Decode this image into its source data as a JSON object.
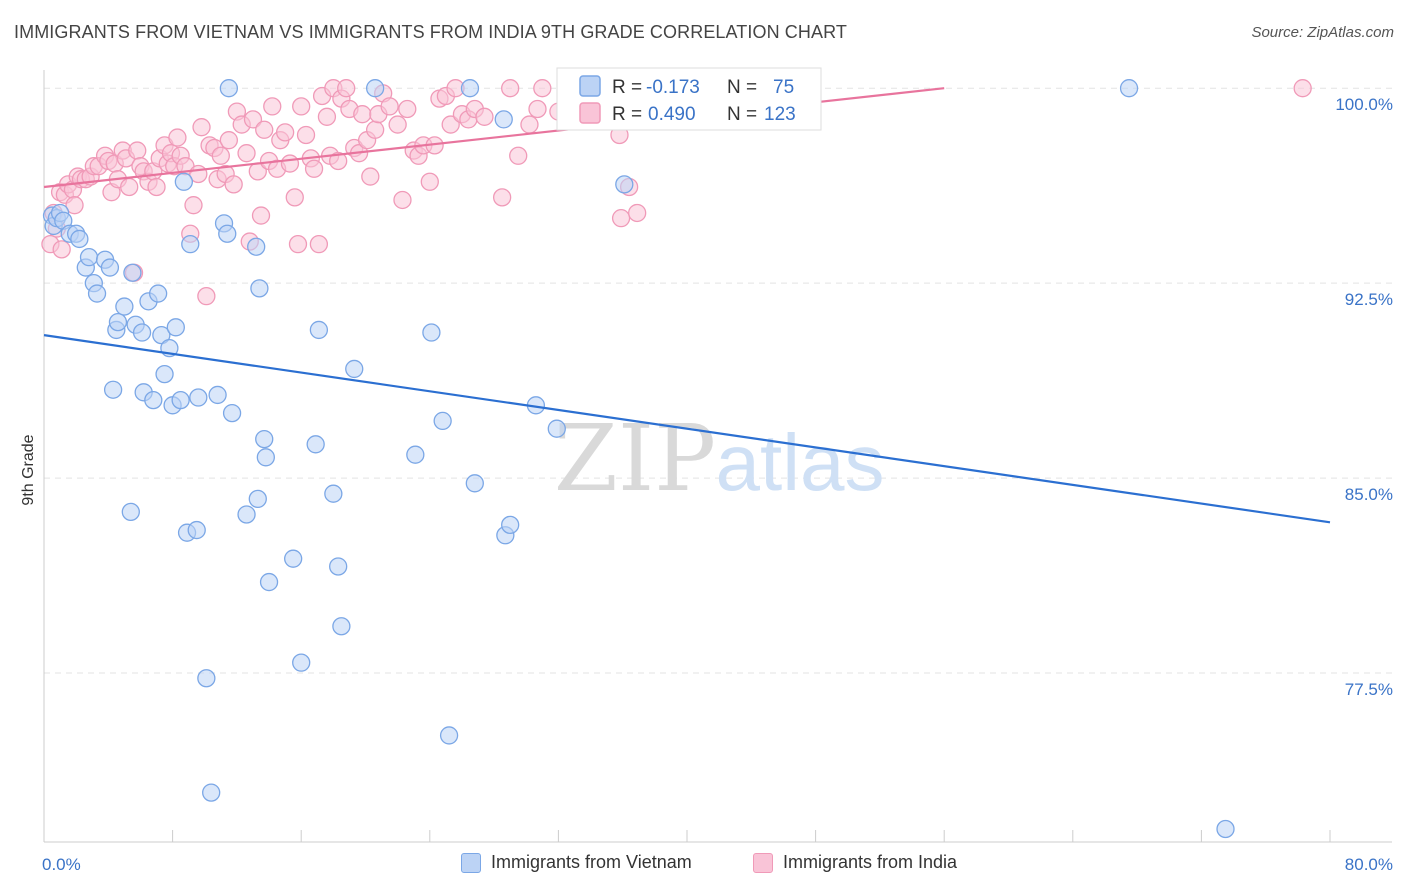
{
  "chart_data": {
    "type": "scatter",
    "title": "IMMIGRANTS FROM VIETNAM VS IMMIGRANTS FROM INDIA 9TH GRADE CORRELATION CHART",
    "source": "Source: ZipAtlas.com",
    "ylabel": "9th Grade",
    "xlabel": "",
    "x_range": [
      0,
      80
    ],
    "y_range": [
      71,
      100.7
    ],
    "x_tick_labels": [
      "0.0%",
      "80.0%"
    ],
    "y_ticks": [
      100.0,
      92.5,
      85.0,
      77.5
    ],
    "y_tick_labels": [
      "100.0%",
      "92.5%",
      "85.0%",
      "77.5%"
    ],
    "watermark": {
      "zip": "ZIP",
      "atlas": "atlas"
    },
    "legend": {
      "r_label": "R =",
      "n_label": "N =",
      "entries": [
        {
          "r": "-0.173",
          "n": "75"
        },
        {
          "r": "0.490",
          "n": "123"
        }
      ]
    },
    "series": [
      {
        "name": "Immigrants from Vietnam",
        "color": "#7ba7e6",
        "fill": "#bcd3f5",
        "line_color": "#2b6fd1",
        "trend": [
          [
            0,
            90.5
          ],
          [
            80,
            83.3
          ]
        ],
        "points": [
          [
            0.5,
            95.1
          ],
          [
            0.6,
            94.7
          ],
          [
            0.8,
            95.0
          ],
          [
            1.0,
            95.2
          ],
          [
            1.2,
            94.9
          ],
          [
            1.6,
            94.4
          ],
          [
            2.0,
            94.4
          ],
          [
            2.2,
            94.2
          ],
          [
            2.6,
            93.1
          ],
          [
            2.8,
            93.5
          ],
          [
            3.1,
            92.5
          ],
          [
            3.3,
            92.1
          ],
          [
            3.8,
            93.4
          ],
          [
            4.1,
            93.1
          ],
          [
            4.3,
            88.4
          ],
          [
            4.5,
            90.7
          ],
          [
            4.6,
            91.0
          ],
          [
            5.0,
            91.6
          ],
          [
            5.4,
            83.7
          ],
          [
            5.5,
            92.9
          ],
          [
            5.7,
            90.9
          ],
          [
            6.2,
            88.3
          ],
          [
            6.1,
            90.6
          ],
          [
            6.5,
            91.8
          ],
          [
            6.8,
            88.0
          ],
          [
            7.1,
            92.1
          ],
          [
            7.3,
            90.5
          ],
          [
            7.5,
            89.0
          ],
          [
            7.8,
            90.0
          ],
          [
            8.0,
            87.8
          ],
          [
            8.2,
            90.8
          ],
          [
            8.5,
            88.0
          ],
          [
            8.7,
            96.4
          ],
          [
            8.9,
            82.9
          ],
          [
            9.1,
            94.0
          ],
          [
            9.5,
            83.0
          ],
          [
            9.6,
            88.1
          ],
          [
            10.1,
            77.3
          ],
          [
            10.4,
            72.9
          ],
          [
            10.8,
            88.2
          ],
          [
            11.2,
            94.8
          ],
          [
            11.4,
            94.4
          ],
          [
            11.5,
            100.0
          ],
          [
            11.7,
            87.5
          ],
          [
            12.6,
            83.6
          ],
          [
            13.3,
            84.2
          ],
          [
            13.4,
            92.3
          ],
          [
            13.2,
            93.9
          ],
          [
            13.7,
            86.5
          ],
          [
            13.8,
            85.8
          ],
          [
            14.0,
            81.0
          ],
          [
            15.5,
            81.9
          ],
          [
            16.0,
            77.9
          ],
          [
            16.9,
            86.3
          ],
          [
            17.1,
            90.7
          ],
          [
            18.0,
            84.4
          ],
          [
            18.3,
            81.6
          ],
          [
            18.5,
            79.3
          ],
          [
            19.3,
            89.2
          ],
          [
            20.6,
            100.0
          ],
          [
            23.1,
            85.9
          ],
          [
            24.1,
            90.6
          ],
          [
            24.8,
            87.2
          ],
          [
            25.2,
            75.1
          ],
          [
            26.5,
            100.0
          ],
          [
            26.8,
            84.8
          ],
          [
            28.6,
            98.8
          ],
          [
            28.7,
            82.8
          ],
          [
            29.0,
            83.2
          ],
          [
            30.6,
            87.8
          ],
          [
            31.9,
            86.9
          ],
          [
            35.5,
            100.0
          ],
          [
            36.1,
            96.3
          ],
          [
            67.5,
            100.0
          ],
          [
            73.5,
            71.5
          ]
        ]
      },
      {
        "name": "Immigrants from India",
        "color": "#f09ab8",
        "fill": "#f9c4d7",
        "line_color": "#e8749d",
        "trend": [
          [
            0,
            96.2
          ],
          [
            56,
            100.0
          ]
        ],
        "points": [
          [
            0.4,
            94.0
          ],
          [
            0.6,
            95.2
          ],
          [
            0.8,
            94.6
          ],
          [
            1.0,
            96.0
          ],
          [
            1.1,
            93.8
          ],
          [
            1.3,
            95.9
          ],
          [
            1.5,
            96.3
          ],
          [
            1.8,
            96.1
          ],
          [
            1.9,
            95.5
          ],
          [
            2.1,
            96.6
          ],
          [
            2.3,
            96.5
          ],
          [
            2.6,
            96.5
          ],
          [
            2.9,
            96.6
          ],
          [
            3.1,
            97.0
          ],
          [
            3.4,
            97.0
          ],
          [
            3.8,
            97.4
          ],
          [
            4.0,
            97.2
          ],
          [
            4.2,
            96.0
          ],
          [
            4.4,
            97.1
          ],
          [
            4.6,
            96.5
          ],
          [
            4.9,
            97.6
          ],
          [
            5.1,
            97.3
          ],
          [
            5.3,
            96.2
          ],
          [
            5.6,
            92.9
          ],
          [
            5.8,
            97.6
          ],
          [
            6.0,
            97.0
          ],
          [
            6.2,
            96.8
          ],
          [
            6.5,
            96.4
          ],
          [
            6.8,
            96.8
          ],
          [
            7.0,
            96.2
          ],
          [
            7.2,
            97.3
          ],
          [
            7.5,
            97.8
          ],
          [
            7.7,
            97.1
          ],
          [
            7.9,
            97.5
          ],
          [
            8.1,
            97.0
          ],
          [
            8.3,
            98.1
          ],
          [
            8.5,
            97.4
          ],
          [
            8.8,
            97.0
          ],
          [
            9.1,
            94.4
          ],
          [
            9.3,
            95.5
          ],
          [
            9.6,
            96.7
          ],
          [
            9.8,
            98.5
          ],
          [
            10.1,
            92.0
          ],
          [
            10.3,
            97.8
          ],
          [
            10.6,
            97.7
          ],
          [
            10.8,
            96.5
          ],
          [
            11.0,
            97.4
          ],
          [
            11.3,
            96.7
          ],
          [
            11.5,
            98.0
          ],
          [
            11.8,
            96.3
          ],
          [
            12.0,
            99.1
          ],
          [
            12.3,
            98.6
          ],
          [
            12.6,
            97.5
          ],
          [
            12.8,
            94.1
          ],
          [
            13.0,
            98.8
          ],
          [
            13.3,
            96.8
          ],
          [
            13.5,
            95.1
          ],
          [
            13.7,
            98.4
          ],
          [
            14.0,
            97.2
          ],
          [
            14.2,
            99.3
          ],
          [
            14.5,
            96.9
          ],
          [
            14.7,
            98.0
          ],
          [
            15.0,
            98.3
          ],
          [
            15.3,
            97.1
          ],
          [
            15.6,
            95.8
          ],
          [
            15.8,
            94.0
          ],
          [
            16.0,
            99.3
          ],
          [
            16.3,
            98.2
          ],
          [
            16.6,
            97.3
          ],
          [
            16.8,
            96.9
          ],
          [
            17.1,
            94.0
          ],
          [
            17.3,
            99.7
          ],
          [
            17.6,
            98.9
          ],
          [
            17.8,
            97.4
          ],
          [
            18.0,
            100.0
          ],
          [
            18.3,
            97.2
          ],
          [
            18.5,
            99.6
          ],
          [
            18.8,
            100.0
          ],
          [
            19.0,
            99.2
          ],
          [
            19.3,
            97.7
          ],
          [
            19.6,
            97.5
          ],
          [
            19.8,
            99.0
          ],
          [
            20.1,
            98.0
          ],
          [
            20.3,
            96.6
          ],
          [
            20.6,
            98.4
          ],
          [
            20.8,
            99.0
          ],
          [
            21.1,
            99.8
          ],
          [
            21.5,
            99.3
          ],
          [
            22.0,
            98.6
          ],
          [
            22.3,
            95.7
          ],
          [
            22.6,
            99.2
          ],
          [
            23.0,
            97.6
          ],
          [
            23.3,
            97.4
          ],
          [
            23.6,
            97.8
          ],
          [
            24.0,
            96.4
          ],
          [
            24.3,
            97.8
          ],
          [
            24.6,
            99.6
          ],
          [
            25.0,
            99.7
          ],
          [
            25.3,
            98.6
          ],
          [
            25.6,
            100.0
          ],
          [
            26.0,
            99.0
          ],
          [
            26.4,
            98.8
          ],
          [
            26.8,
            99.2
          ],
          [
            27.4,
            98.9
          ],
          [
            28.5,
            95.8
          ],
          [
            29.0,
            100.0
          ],
          [
            29.5,
            97.4
          ],
          [
            30.2,
            98.6
          ],
          [
            30.7,
            99.2
          ],
          [
            31.0,
            100.0
          ],
          [
            32.0,
            99.1
          ],
          [
            33.0,
            100.0
          ],
          [
            34.0,
            99.2
          ],
          [
            35.2,
            99.3
          ],
          [
            35.8,
            98.2
          ],
          [
            36.5,
            99.0
          ],
          [
            37.0,
            100.0
          ],
          [
            37.5,
            99.1
          ],
          [
            35.9,
            95.0
          ],
          [
            36.4,
            96.2
          ],
          [
            36.9,
            95.2
          ],
          [
            78.3,
            100.0
          ]
        ]
      }
    ]
  }
}
